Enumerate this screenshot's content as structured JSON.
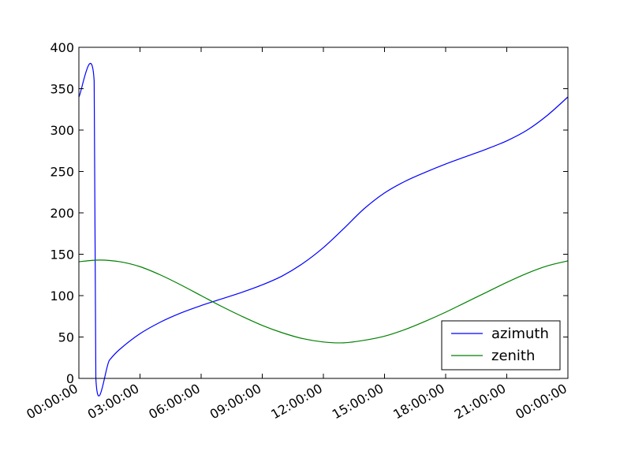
{
  "chart_data": {
    "type": "line",
    "title": "",
    "xlabel": "",
    "ylabel": "",
    "xlim": [
      "00:00:00",
      "24:00:00"
    ],
    "ylim": [
      0,
      400
    ],
    "y_ticks": [
      0,
      50,
      100,
      150,
      200,
      250,
      300,
      350,
      400
    ],
    "x_ticks": [
      "00:00:00",
      "03:00:00",
      "06:00:00",
      "09:00:00",
      "12:00:00",
      "15:00:00",
      "18:00:00",
      "21:00:00",
      "00:00:00"
    ],
    "grid": false,
    "legend": "lower-right",
    "series": [
      {
        "name": "azimuth",
        "color": "#0000ff",
        "points": [
          [
            "00:00:00",
            340
          ],
          [
            "00:45:00",
            359
          ],
          [
            "00:50:00",
            0
          ],
          [
            "01:30:00",
            22
          ],
          [
            "02:00:00",
            35
          ],
          [
            "03:00:00",
            54
          ],
          [
            "04:00:00",
            68
          ],
          [
            "05:00:00",
            79
          ],
          [
            "06:00:00",
            88
          ],
          [
            "07:00:00",
            96
          ],
          [
            "08:00:00",
            104
          ],
          [
            "09:00:00",
            113
          ],
          [
            "10:00:00",
            124
          ],
          [
            "11:00:00",
            139
          ],
          [
            "12:00:00",
            158
          ],
          [
            "13:00:00",
            181
          ],
          [
            "14:00:00",
            205
          ],
          [
            "15:00:00",
            224
          ],
          [
            "16:00:00",
            238
          ],
          [
            "17:00:00",
            249
          ],
          [
            "18:00:00",
            259
          ],
          [
            "19:00:00",
            268
          ],
          [
            "20:00:00",
            277
          ],
          [
            "21:00:00",
            287
          ],
          [
            "22:00:00",
            300
          ],
          [
            "23:00:00",
            318
          ],
          [
            "24:00:00",
            340
          ]
        ]
      },
      {
        "name": "zenith",
        "color": "#008000",
        "points": [
          [
            "00:00:00",
            141
          ],
          [
            "01:00:00",
            143
          ],
          [
            "02:00:00",
            141
          ],
          [
            "03:00:00",
            135
          ],
          [
            "04:00:00",
            125
          ],
          [
            "05:00:00",
            113
          ],
          [
            "06:00:00",
            100
          ],
          [
            "07:00:00",
            87
          ],
          [
            "08:00:00",
            75
          ],
          [
            "09:00:00",
            64
          ],
          [
            "10:00:00",
            55
          ],
          [
            "11:00:00",
            48
          ],
          [
            "12:00:00",
            44
          ],
          [
            "13:00:00",
            43
          ],
          [
            "14:00:00",
            46
          ],
          [
            "15:00:00",
            51
          ],
          [
            "16:00:00",
            59
          ],
          [
            "17:00:00",
            69
          ],
          [
            "18:00:00",
            80
          ],
          [
            "19:00:00",
            92
          ],
          [
            "20:00:00",
            104
          ],
          [
            "21:00:00",
            116
          ],
          [
            "22:00:00",
            127
          ],
          [
            "23:00:00",
            136
          ],
          [
            "24:00:00",
            142
          ]
        ]
      }
    ]
  }
}
